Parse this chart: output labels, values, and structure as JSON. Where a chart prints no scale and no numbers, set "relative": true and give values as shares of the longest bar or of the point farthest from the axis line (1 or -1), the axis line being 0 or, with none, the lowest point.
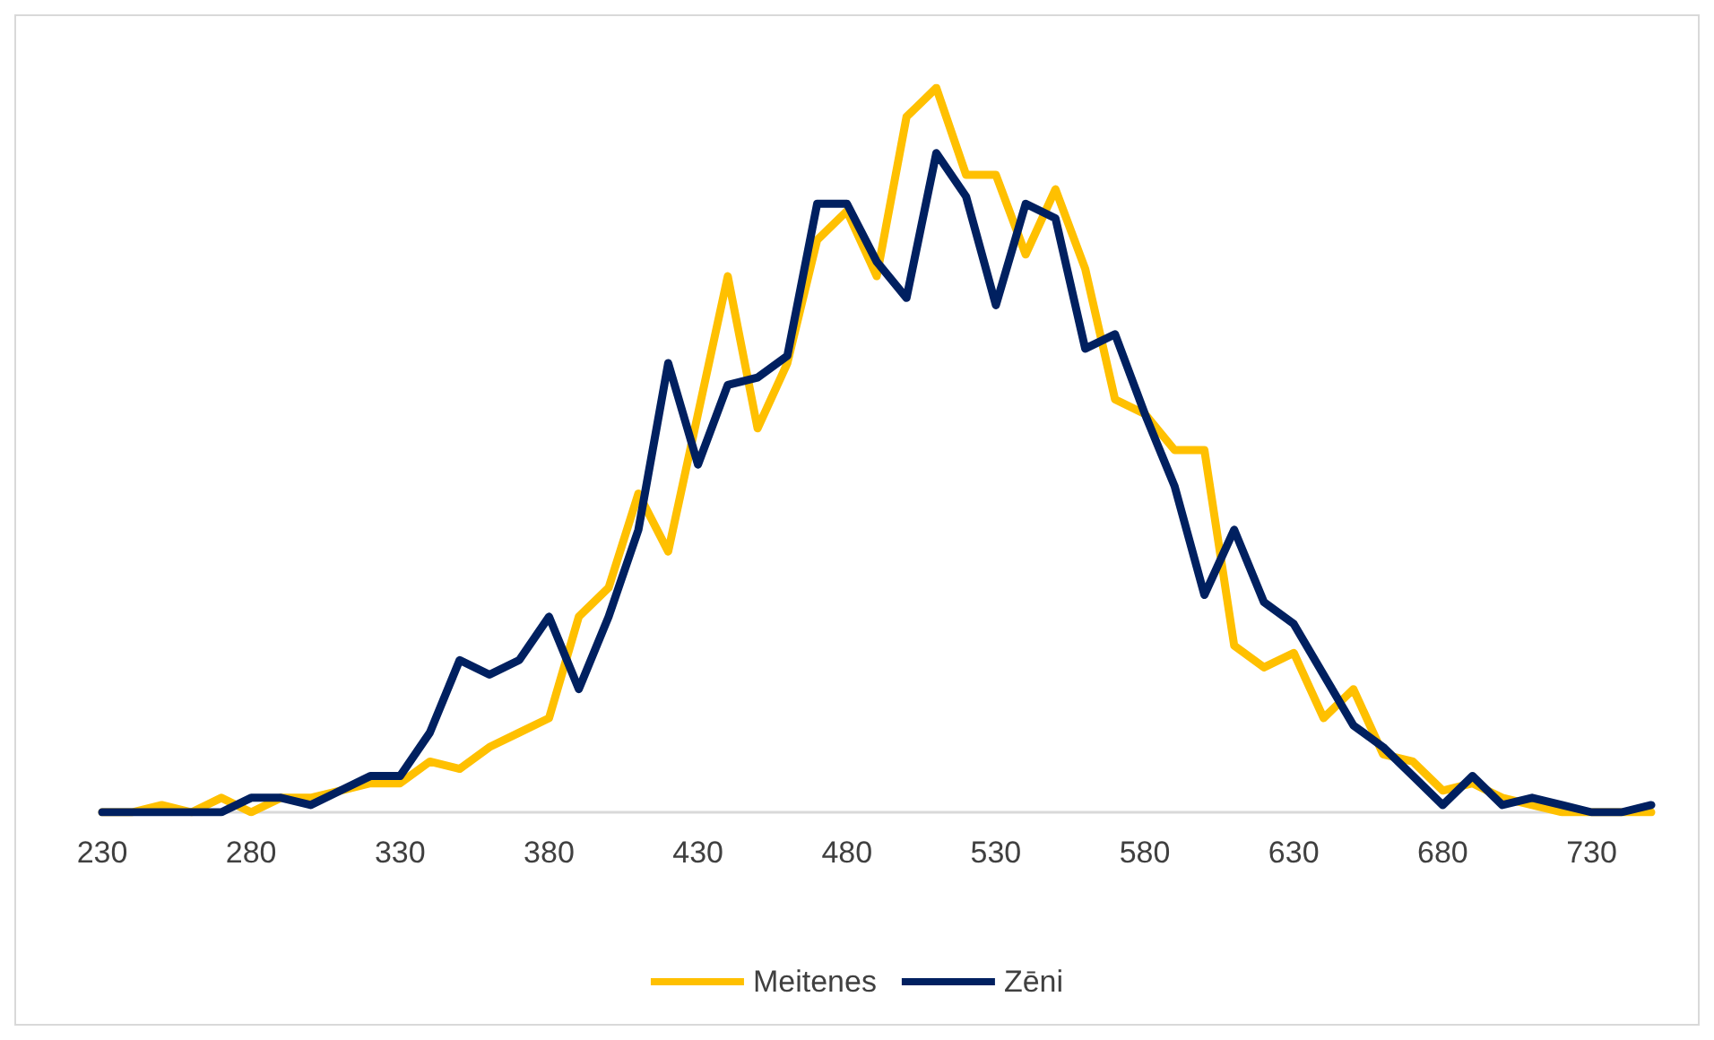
{
  "chart_data": {
    "type": "line",
    "relative": true,
    "legend": "bottom",
    "marker": "none",
    "line_style": "solid",
    "grid": false,
    "categories": [
      "230",
      null,
      null,
      null,
      null,
      "280",
      null,
      null,
      null,
      null,
      "330",
      null,
      null,
      null,
      null,
      "380",
      null,
      null,
      null,
      null,
      "430",
      null,
      null,
      null,
      null,
      "480",
      null,
      null,
      null,
      null,
      "530",
      null,
      null,
      null,
      null,
      "580",
      null,
      null,
      null,
      null,
      "630",
      null,
      null,
      null,
      null,
      "680",
      null,
      null,
      null,
      null,
      "730",
      null,
      null
    ],
    "series": [
      {
        "name": "Meitenes",
        "color": "#ffc000",
        "values": [
          0,
          0,
          0.01,
          0,
          0.02,
          0,
          0.02,
          0.02,
          0.03,
          0.04,
          0.04,
          0.07,
          0.06,
          0.09,
          0.11,
          0.13,
          0.27,
          0.31,
          0.44,
          0.36,
          0.55,
          0.74,
          0.53,
          0.62,
          0.79,
          0.83,
          0.74,
          0.96,
          1,
          0.88,
          0.88,
          0.77,
          0.86,
          0.75,
          0.57,
          0.55,
          0.5,
          0.5,
          0.23,
          0.2,
          0.22,
          0.13,
          0.17,
          0.08,
          0.07,
          0.03,
          0.04,
          0.02,
          0.01,
          0,
          0,
          0,
          0
        ]
      },
      {
        "name": "Zēni",
        "color": "#002060",
        "values": [
          0,
          0,
          0,
          0,
          0,
          0.02,
          0.02,
          0.01,
          0.03,
          0.05,
          0.05,
          0.11,
          0.21,
          0.19,
          0.21,
          0.27,
          0.17,
          0.27,
          0.39,
          0.62,
          0.48,
          0.59,
          0.6,
          0.63,
          0.84,
          0.84,
          0.76,
          0.71,
          0.91,
          0.85,
          0.7,
          0.84,
          0.82,
          0.64,
          0.66,
          0.55,
          0.45,
          0.3,
          0.39,
          0.29,
          0.26,
          0.19,
          0.12,
          0.09,
          0.05,
          0.01,
          0.05,
          0.01,
          0.02,
          0.01,
          0,
          0,
          0.01
        ]
      }
    ]
  }
}
